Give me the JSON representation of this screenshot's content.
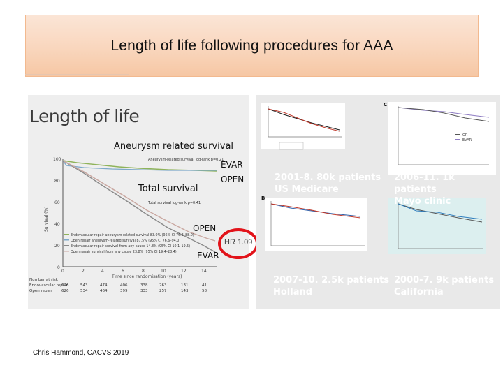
{
  "slide": {
    "title": "Length of life following procedures for AAA",
    "author": "Chris Hammond, CACVS 2019"
  },
  "left_figure": {
    "heading": "Length of life",
    "overlays": {
      "aneurysm": "Aneurysm related survival",
      "evar_top": "EVAR",
      "open_top": "OPEN",
      "total": "Total survival",
      "open_mid": "OPEN",
      "evar_bottom": "EVAR",
      "hr": "HR 1.09"
    },
    "curve_labels": {
      "aneurysm": "Aneurysm-related survival log-rank p=0.21",
      "total": "Total survival log-rank p=0.41"
    },
    "y_axis_label": "Survival (%)",
    "y_ticks": [
      "100",
      "80",
      "60",
      "40",
      "20",
      "0"
    ],
    "x_ticks": [
      "0",
      "2",
      "4",
      "6",
      "8",
      "10",
      "12",
      "14"
    ],
    "x_axis_label": "Time since randomisation (years)",
    "legend": [
      "Endovascular repair aneurysm-related survival 83.0% (95% CI 76.3–88.0)",
      "Open repair aneurysm-related survival 87.5% (95% CI 76.6–94.0)",
      "Endovascular repair survival from any cause 14.8% (95% CI 10.1–19.5)",
      "Open repair survival from any cause 23.8% (95% CI 19.4–28.4)"
    ],
    "risk_table": {
      "header": "Number at risk",
      "rows": [
        {
          "label": "Endovascular repair",
          "values": [
            "626",
            "543",
            "474",
            "406",
            "338",
            "263",
            "131",
            "41"
          ]
        },
        {
          "label": "Open repair",
          "values": [
            "626",
            "534",
            "464",
            "399",
            "333",
            "257",
            "143",
            "58"
          ]
        }
      ]
    },
    "colors": {
      "evar_related": "#8fb35a",
      "open_related": "#7da9c9",
      "evar_total": "#8a8a8a",
      "open_total": "#c9a7a0"
    }
  },
  "right_figures": {
    "top_left": {
      "caption_line1": "2001-8. 80k patients",
      "caption_line2": "US Medicare"
    },
    "top_right": {
      "caption_line1": "2006-11. 1k patients",
      "caption_line2": "Mayo clinic",
      "panel_letter": "C",
      "legend": [
        "OR",
        "EVAR"
      ]
    },
    "bottom_left": {
      "caption_line1": "2007-10. 2.5k patients",
      "caption_line2": "Holland",
      "panel_letter": "B"
    },
    "bottom_right": {
      "caption_line1": "2000-7. 9k patients",
      "caption_line2": "California"
    }
  }
}
